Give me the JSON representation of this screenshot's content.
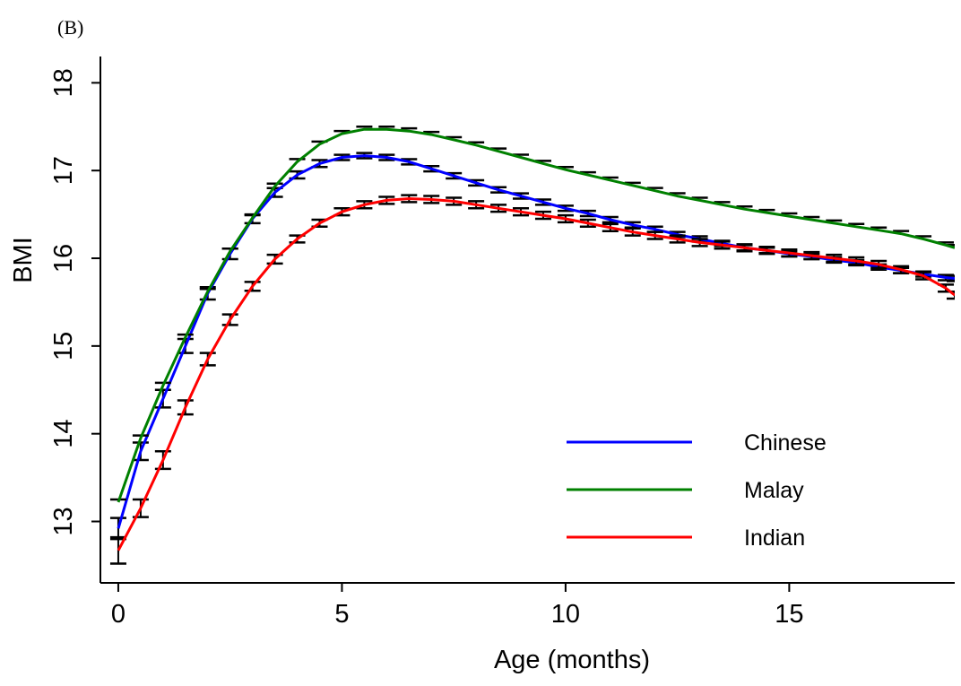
{
  "panel_label": "(B)",
  "chart_data": {
    "type": "line",
    "xlabel": "Age (months)",
    "ylabel": "BMI",
    "xlim": [
      -0.4,
      18.7
    ],
    "ylim": [
      12.3,
      18.3
    ],
    "xticks": [
      0,
      5,
      10,
      15
    ],
    "yticks": [
      13,
      14,
      15,
      16,
      17,
      18
    ],
    "grid": false,
    "legend_position": "bottom-right",
    "error_bars": true,
    "series": [
      {
        "name": "Chinese",
        "color": "#0000ff",
        "x": [
          0,
          0.5,
          1,
          1.5,
          2,
          2.5,
          3,
          3.5,
          4,
          4.5,
          5,
          5.5,
          6,
          6.5,
          7,
          7.5,
          8,
          8.5,
          9,
          9.5,
          10,
          10.5,
          11,
          11.5,
          12,
          12.5,
          13,
          13.5,
          14,
          14.5,
          15,
          15.5,
          16,
          16.5,
          17,
          17.5,
          18,
          18.5,
          18.7
        ],
        "values": [
          12.92,
          13.8,
          14.4,
          15.0,
          15.6,
          16.05,
          16.45,
          16.75,
          16.95,
          17.08,
          17.15,
          17.17,
          17.15,
          17.1,
          17.02,
          16.94,
          16.86,
          16.78,
          16.71,
          16.64,
          16.57,
          16.51,
          16.44,
          16.38,
          16.33,
          16.27,
          16.22,
          16.17,
          16.12,
          16.09,
          16.05,
          16.02,
          15.98,
          15.95,
          15.9,
          15.86,
          15.82,
          15.78,
          15.77
        ],
        "err": [
          0.12,
          0.1,
          0.1,
          0.08,
          0.07,
          0.06,
          0.05,
          0.05,
          0.04,
          0.04,
          0.03,
          0.03,
          0.03,
          0.03,
          0.03,
          0.03,
          0.03,
          0.03,
          0.03,
          0.03,
          0.03,
          0.03,
          0.03,
          0.03,
          0.03,
          0.03,
          0.03,
          0.03,
          0.03,
          0.03,
          0.03,
          0.03,
          0.03,
          0.03,
          0.03,
          0.03,
          0.03,
          0.03,
          0.03
        ]
      },
      {
        "name": "Malay",
        "color": "#008000",
        "x": [
          0,
          0.5,
          1,
          1.5,
          2,
          2.5,
          3,
          3.5,
          4,
          4.5,
          5,
          5.5,
          6,
          6.5,
          7,
          7.5,
          8,
          8.5,
          9,
          9.5,
          10,
          10.5,
          11,
          11.5,
          12,
          12.5,
          13,
          13.5,
          14,
          14.5,
          15,
          15.5,
          16,
          16.5,
          17,
          17.5,
          18,
          18.5,
          18.7
        ],
        "values": [
          13.22,
          13.95,
          14.55,
          15.1,
          15.62,
          16.08,
          16.46,
          16.82,
          17.1,
          17.3,
          17.42,
          17.47,
          17.47,
          17.45,
          17.41,
          17.35,
          17.29,
          17.22,
          17.15,
          17.08,
          17.01,
          16.95,
          16.89,
          16.83,
          16.77,
          16.71,
          16.66,
          16.61,
          16.56,
          16.52,
          16.48,
          16.44,
          16.4,
          16.36,
          16.32,
          16.28,
          16.22,
          16.15,
          16.12
        ]
      },
      {
        "name": "Indian",
        "color": "#ff0000",
        "x": [
          0,
          0.5,
          1,
          1.5,
          2,
          2.5,
          3,
          3.5,
          4,
          4.5,
          5,
          5.5,
          6,
          6.5,
          7,
          7.5,
          8,
          8.5,
          9,
          9.5,
          10,
          10.5,
          11,
          11.5,
          12,
          12.5,
          13,
          13.5,
          14,
          14.5,
          15,
          15.5,
          16,
          16.5,
          17,
          17.5,
          18,
          18.5,
          18.7
        ],
        "values": [
          12.67,
          13.15,
          13.7,
          14.3,
          14.85,
          15.3,
          15.68,
          15.99,
          16.22,
          16.4,
          16.53,
          16.61,
          16.66,
          16.68,
          16.67,
          16.65,
          16.61,
          16.57,
          16.53,
          16.49,
          16.45,
          16.4,
          16.35,
          16.3,
          16.26,
          16.22,
          16.18,
          16.15,
          16.12,
          16.09,
          16.06,
          16.03,
          16.0,
          15.97,
          15.93,
          15.87,
          15.8,
          15.66,
          15.58
        ],
        "err": [
          0.15,
          0.1,
          0.1,
          0.08,
          0.07,
          0.06,
          0.05,
          0.05,
          0.04,
          0.04,
          0.04,
          0.04,
          0.04,
          0.04,
          0.04,
          0.04,
          0.04,
          0.04,
          0.04,
          0.04,
          0.04,
          0.04,
          0.04,
          0.04,
          0.04,
          0.04,
          0.04,
          0.04,
          0.04,
          0.04,
          0.04,
          0.04,
          0.04,
          0.04,
          0.04,
          0.04,
          0.04,
          0.04,
          0.04
        ]
      }
    ]
  }
}
